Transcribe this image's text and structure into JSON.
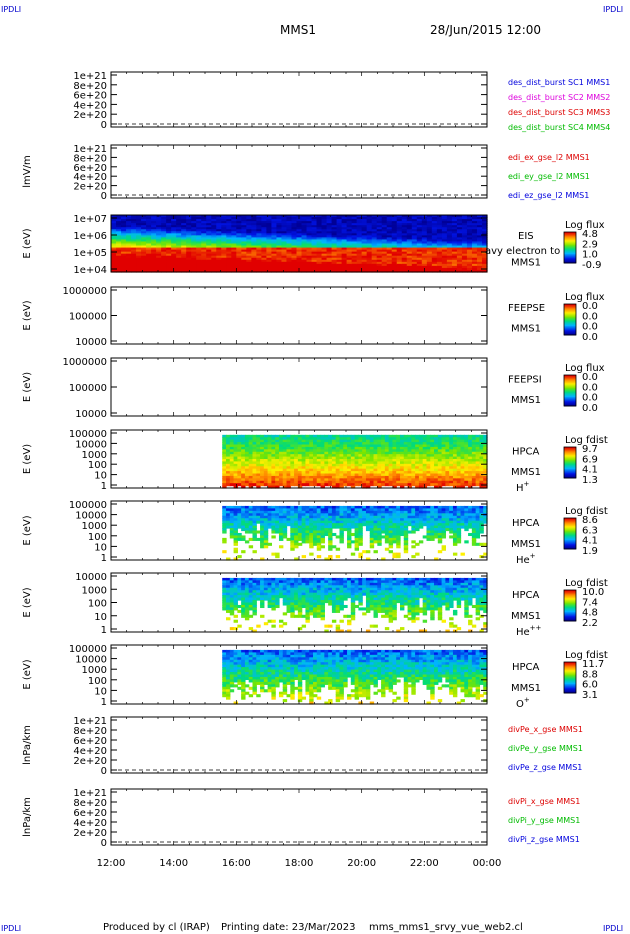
{
  "corner_labels": {
    "top_left": "IPDLI",
    "top_right": "IPDLI",
    "bottom_left": "IPDLI",
    "bottom_right": "IPDLI"
  },
  "header": {
    "spacecraft": "MMS1",
    "datetime": "28/Jun/2015 12:00"
  },
  "footer": {
    "produced_by": "Produced by cl (IRAP)",
    "printing_date": "Printing date: 23/Mar/2023",
    "filename": "mms_mms1_srvy_vue_web2.cl"
  },
  "colors": {
    "blue": "#0000dd",
    "magenta": "#dd00dd",
    "red": "#dd0000",
    "green": "#00bb00"
  },
  "chart_data": [
    {
      "id": "p1",
      "type": "line",
      "ylabel": "",
      "yticks": [
        "1e+21",
        "8e+20",
        "6e+20",
        "4e+20",
        "2e+20",
        "0"
      ],
      "legend": [
        {
          "text": "des_dist_burst SC1 MMS1",
          "color": "blue"
        },
        {
          "text": "des_dist_burst SC2 MMS2",
          "color": "magenta"
        },
        {
          "text": "des_dist_burst SC3 MMS3",
          "color": "red"
        },
        {
          "text": "des_dist_burst SC4 MMS4",
          "color": "green"
        }
      ],
      "zero_line": true
    },
    {
      "id": "p2",
      "type": "line",
      "ylabel": "lmV/m",
      "yticks": [
        "1e+21",
        "8e+20",
        "6e+20",
        "4e+20",
        "2e+20",
        "0"
      ],
      "legend": [
        {
          "text": "edi_ex_gse_l2 MMS1",
          "color": "red"
        },
        {
          "text": "edi_ey_gse_l2 MMS1",
          "color": "green"
        },
        {
          "text": "edi_ez_gse_l2 MMS1",
          "color": "blue"
        }
      ],
      "zero_line": true
    },
    {
      "id": "p3",
      "type": "heatmap",
      "ylabel": "E (eV)",
      "yticks": [
        "1e+07",
        "1e+06",
        "1e+05",
        "1e+04"
      ],
      "labels": [
        "EIS",
        "MMS1"
      ],
      "overflow_label": "avy electron to",
      "colorbar": {
        "title": "Log flux",
        "ticks": [
          "4.8",
          "2.9",
          "1.0",
          "-0.9"
        ]
      },
      "data_start_hour": 12.0
    },
    {
      "id": "p4",
      "type": "heatmap",
      "ylabel": "E (eV)",
      "yticks": [
        "1000000",
        "100000",
        "10000"
      ],
      "labels": [
        "FEEPSE",
        "MMS1"
      ],
      "colorbar": {
        "title": "Log flux",
        "ticks": [
          "0.0",
          "0.0",
          "0.0",
          "0.0"
        ]
      }
    },
    {
      "id": "p5",
      "type": "heatmap",
      "ylabel": "E (eV)",
      "yticks": [
        "1000000",
        "100000",
        "10000"
      ],
      "labels": [
        "FEEPSI",
        "MMS1"
      ],
      "colorbar": {
        "title": "Log flux",
        "ticks": [
          "0.0",
          "0.0",
          "0.0",
          "0.0"
        ]
      }
    },
    {
      "id": "p6",
      "type": "heatmap",
      "ylabel": "E (eV)",
      "yticks": [
        "100000",
        "10000",
        "1000",
        "100",
        "10",
        "1"
      ],
      "labels": [
        "HPCA",
        "MMS1"
      ],
      "species": "H",
      "species_sup": "+",
      "colorbar": {
        "title": "Log fdist",
        "ticks": [
          "9.7",
          "6.9",
          "4.1",
          "1.3"
        ]
      },
      "data_start_hour": 15.55
    },
    {
      "id": "p7",
      "type": "heatmap",
      "ylabel": "E (eV)",
      "yticks": [
        "100000",
        "10000",
        "1000",
        "100",
        "10",
        "1"
      ],
      "labels": [
        "HPCA",
        "MMS1"
      ],
      "species": "He",
      "species_sup": "+",
      "colorbar": {
        "title": "Log fdist",
        "ticks": [
          "8.6",
          "6.3",
          "4.1",
          "1.9"
        ]
      },
      "data_start_hour": 15.55
    },
    {
      "id": "p8",
      "type": "heatmap",
      "ylabel": "E (eV)",
      "yticks": [
        "10000",
        "1000",
        "100",
        "10",
        "1"
      ],
      "labels": [
        "HPCA",
        "MMS1"
      ],
      "species": "He",
      "species_sup": "++",
      "colorbar": {
        "title": "Log fdist",
        "ticks": [
          "10.0",
          "7.4",
          "4.8",
          "2.2"
        ]
      },
      "data_start_hour": 15.55
    },
    {
      "id": "p9",
      "type": "heatmap",
      "ylabel": "E (eV)",
      "yticks": [
        "100000",
        "10000",
        "1000",
        "100",
        "10",
        "1"
      ],
      "labels": [
        "HPCA",
        "MMS1"
      ],
      "species": "O",
      "species_sup": "+",
      "colorbar": {
        "title": "Log fdist",
        "ticks": [
          "11.7",
          "8.8",
          "6.0",
          "3.1"
        ]
      },
      "data_start_hour": 15.55
    },
    {
      "id": "p10",
      "type": "line",
      "ylabel": "lnPa/km",
      "yticks": [
        "1e+21",
        "8e+20",
        "6e+20",
        "4e+20",
        "2e+20",
        "0"
      ],
      "legend": [
        {
          "text": "divPe_x_gse MMS1",
          "color": "red"
        },
        {
          "text": "divPe_y_gse MMS1",
          "color": "green"
        },
        {
          "text": "divPe_z_gse MMS1",
          "color": "blue"
        }
      ],
      "zero_line": true
    },
    {
      "id": "p11",
      "type": "line",
      "ylabel": "lnPa/km",
      "yticks": [
        "1e+21",
        "8e+20",
        "6e+20",
        "4e+20",
        "2e+20",
        "0"
      ],
      "legend": [
        {
          "text": "divPi_x_gse MMS1",
          "color": "red"
        },
        {
          "text": "divPi_y_gse MMS1",
          "color": "green"
        },
        {
          "text": "divPi_z_gse MMS1",
          "color": "blue"
        }
      ],
      "zero_line": true
    }
  ],
  "time_axis": {
    "ticks": [
      "12:00",
      "14:00",
      "16:00",
      "18:00",
      "20:00",
      "22:00",
      "00:00"
    ],
    "start_hour": 12,
    "end_hour": 24
  }
}
